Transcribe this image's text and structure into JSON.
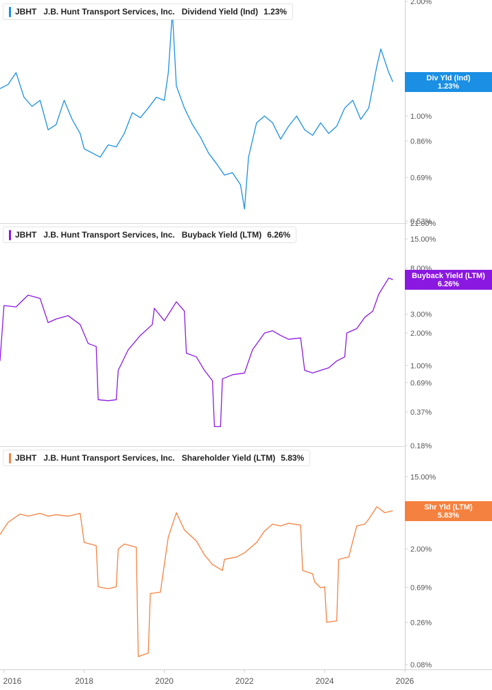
{
  "chart_data": [
    {
      "type": "line",
      "ticker": "JBHT",
      "company": "J.B. Hunt Transport Services, Inc.",
      "metric": "Dividend Yield (Ind)",
      "current_value": "1.23%",
      "flag_label": "Div Yld (Ind)",
      "color": "#1a8fe3",
      "scale": "log",
      "ylim": [
        0.53,
        2.0
      ],
      "yticks": [
        {
          "value": 2.0,
          "label": "2.00%"
        },
        {
          "value": 1.0,
          "label": "1.00%"
        },
        {
          "value": 0.86,
          "label": "0.86%"
        },
        {
          "value": 0.69,
          "label": "0.69%"
        },
        {
          "value": 0.53,
          "label": "0.53%"
        }
      ],
      "x": [
        2015.9,
        2016.1,
        2016.3,
        2016.5,
        2016.7,
        2016.9,
        2017.1,
        2017.3,
        2017.5,
        2017.7,
        2017.9,
        2018.0,
        2018.2,
        2018.4,
        2018.6,
        2018.8,
        2019.0,
        2019.2,
        2019.4,
        2019.6,
        2019.8,
        2020.0,
        2020.1,
        2020.2,
        2020.3,
        2020.5,
        2020.7,
        2020.9,
        2021.1,
        2021.3,
        2021.5,
        2021.7,
        2021.9,
        2022.0,
        2022.1,
        2022.3,
        2022.5,
        2022.7,
        2022.9,
        2023.1,
        2023.3,
        2023.5,
        2023.7,
        2023.9,
        2024.1,
        2024.3,
        2024.5,
        2024.7,
        2024.9,
        2025.1,
        2025.3,
        2025.4,
        2025.6,
        2025.7
      ],
      "y": [
        1.18,
        1.21,
        1.3,
        1.12,
        1.06,
        1.1,
        0.92,
        0.95,
        1.1,
        0.98,
        0.9,
        0.82,
        0.8,
        0.78,
        0.84,
        0.83,
        0.9,
        1.02,
        0.99,
        1.05,
        1.12,
        1.1,
        1.3,
        1.88,
        1.2,
        1.05,
        0.95,
        0.88,
        0.8,
        0.75,
        0.7,
        0.71,
        0.66,
        0.57,
        0.78,
        0.96,
        1.0,
        0.96,
        0.87,
        0.94,
        1.0,
        0.92,
        0.89,
        0.96,
        0.9,
        0.94,
        1.05,
        1.1,
        0.98,
        1.05,
        1.35,
        1.5,
        1.3,
        1.23
      ]
    },
    {
      "type": "line",
      "ticker": "JBHT",
      "company": "J.B. Hunt Transport Services, Inc.",
      "metric": "Buyback Yield (LTM)",
      "current_value": "6.26%",
      "flag_label": "Buyback Yield (LTM)",
      "color": "#8b18e0",
      "scale": "log",
      "ylim": [
        0.18,
        21.0
      ],
      "yticks": [
        {
          "value": 21.0,
          "label": "21.00%"
        },
        {
          "value": 15.0,
          "label": "15.00%"
        },
        {
          "value": 8.0,
          "label": "8.00%"
        },
        {
          "value": 3.0,
          "label": "3.00%"
        },
        {
          "value": 2.0,
          "label": "2.00%"
        },
        {
          "value": 1.0,
          "label": "1.00%"
        },
        {
          "value": 0.69,
          "label": "0.69%"
        },
        {
          "value": 0.37,
          "label": "0.37%"
        },
        {
          "value": 0.18,
          "label": "0.18%"
        }
      ],
      "x": [
        2015.9,
        2016.0,
        2016.3,
        2016.6,
        2016.9,
        2017.1,
        2017.3,
        2017.6,
        2017.9,
        2018.1,
        2018.3,
        2018.35,
        2018.6,
        2018.8,
        2018.85,
        2019.1,
        2019.4,
        2019.7,
        2019.75,
        2020.0,
        2020.3,
        2020.5,
        2020.55,
        2020.8,
        2021.0,
        2021.2,
        2021.25,
        2021.4,
        2021.45,
        2021.7,
        2022.0,
        2022.2,
        2022.5,
        2022.7,
        2022.9,
        2023.1,
        2023.4,
        2023.5,
        2023.7,
        2023.9,
        2024.1,
        2024.3,
        2024.5,
        2024.55,
        2024.8,
        2025.0,
        2025.2,
        2025.35,
        2025.6,
        2025.7
      ],
      "y": [
        1.1,
        3.6,
        3.5,
        4.5,
        4.2,
        2.5,
        2.7,
        2.9,
        2.4,
        1.6,
        1.5,
        0.48,
        0.47,
        0.48,
        0.9,
        1.4,
        1.9,
        2.4,
        3.4,
        2.6,
        3.9,
        3.2,
        1.3,
        1.2,
        0.9,
        0.72,
        0.27,
        0.27,
        0.75,
        0.82,
        0.85,
        1.4,
        2.0,
        2.1,
        1.9,
        1.75,
        1.8,
        0.9,
        0.85,
        0.9,
        0.95,
        1.1,
        1.2,
        2.0,
        2.2,
        2.8,
        3.2,
        4.6,
        6.5,
        6.26
      ]
    },
    {
      "type": "line",
      "ticker": "JBHT",
      "company": "J.B. Hunt Transport Services, Inc.",
      "metric": "Shareholder Yield (LTM)",
      "current_value": "5.83%",
      "flag_label": "Shr Yld (LTM)",
      "color": "#f4813f",
      "scale": "log",
      "ylim": [
        0.08,
        35.0
      ],
      "yticks": [
        {
          "value": 15.0,
          "label": "15.00%"
        },
        {
          "value": 2.0,
          "label": "2.00%"
        },
        {
          "value": 0.69,
          "label": "0.69%"
        },
        {
          "value": 0.26,
          "label": "0.26%"
        },
        {
          "value": 0.08,
          "label": "0.08%"
        }
      ],
      "x": [
        2015.9,
        2016.1,
        2016.4,
        2016.6,
        2016.9,
        2017.1,
        2017.3,
        2017.6,
        2017.9,
        2018.0,
        2018.3,
        2018.35,
        2018.6,
        2018.8,
        2018.85,
        2019.0,
        2019.3,
        2019.35,
        2019.6,
        2019.65,
        2019.9,
        2020.1,
        2020.3,
        2020.5,
        2020.8,
        2021.0,
        2021.2,
        2021.45,
        2021.5,
        2021.8,
        2022.0,
        2022.3,
        2022.5,
        2022.7,
        2022.9,
        2023.1,
        2023.4,
        2023.45,
        2023.7,
        2023.75,
        2023.9,
        2024.0,
        2024.05,
        2024.3,
        2024.35,
        2024.6,
        2024.8,
        2025.0,
        2025.1,
        2025.3,
        2025.5,
        2025.7
      ],
      "y": [
        3.0,
        4.2,
        5.3,
        5.0,
        5.4,
        5.0,
        5.2,
        5.0,
        5.4,
        2.4,
        2.2,
        0.7,
        0.66,
        0.7,
        2.0,
        2.3,
        2.1,
        0.1,
        0.11,
        0.58,
        0.6,
        2.8,
        5.5,
        3.4,
        2.5,
        1.7,
        1.3,
        1.1,
        1.5,
        1.6,
        1.8,
        2.4,
        3.3,
        4.0,
        3.8,
        4.1,
        3.9,
        1.1,
        1.0,
        0.8,
        0.68,
        0.7,
        0.26,
        0.27,
        1.5,
        1.6,
        3.8,
        4.0,
        4.6,
        6.5,
        5.5,
        5.83
      ]
    }
  ],
  "x_axis": {
    "labels": [
      "2016",
      "2018",
      "2020",
      "2022",
      "2024",
      "2026"
    ],
    "values": [
      2016,
      2018,
      2020,
      2022,
      2024,
      2026
    ],
    "xlim": [
      2015.9,
      2026.0
    ]
  }
}
